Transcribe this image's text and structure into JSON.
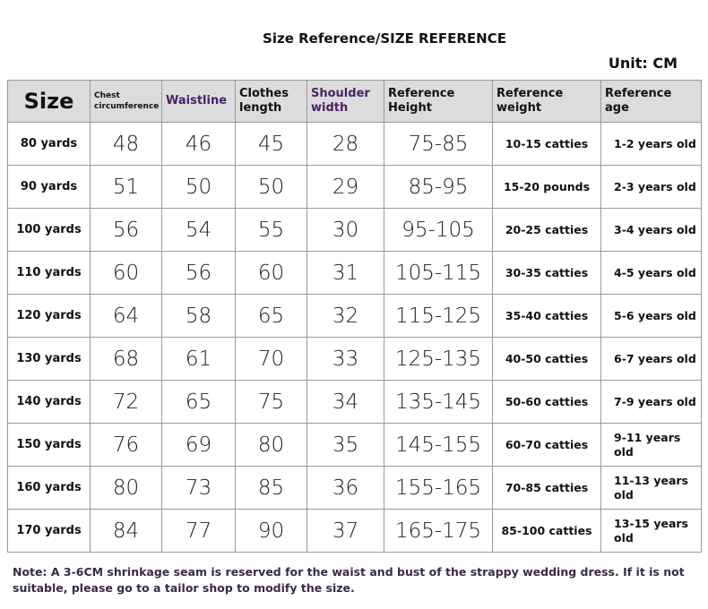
{
  "title": "Size Reference/SIZE REFERENCE",
  "unit": "Unit: CM",
  "table": {
    "headers": [
      "Size",
      "Chest circumference",
      "Waistline",
      "Clothes length",
      "Shoulder width",
      "Reference Height",
      "Reference weight",
      "Reference age"
    ],
    "rows": [
      [
        "80 yards",
        "48",
        "46",
        "45",
        "28",
        "75-85",
        "10-15 catties",
        "1-2 years old"
      ],
      [
        "90 yards",
        "51",
        "50",
        "50",
        "29",
        "85-95",
        "15-20 pounds",
        "2-3 years old"
      ],
      [
        "100 yards",
        "56",
        "54",
        "55",
        "30",
        "95-105",
        "20-25 catties",
        "3-4 years old"
      ],
      [
        "110 yards",
        "60",
        "56",
        "60",
        "31",
        "105-115",
        "30-35 catties",
        "4-5 years old"
      ],
      [
        "120 yards",
        "64",
        "58",
        "65",
        "32",
        "115-125",
        "35-40 catties",
        "5-6 years old"
      ],
      [
        "130 yards",
        "68",
        "61",
        "70",
        "33",
        "125-135",
        "40-50 catties",
        "6-7 years old"
      ],
      [
        "140 yards",
        "72",
        "65",
        "75",
        "34",
        "135-145",
        "50-60 catties",
        "7-9 years old"
      ],
      [
        "150 yards",
        "76",
        "69",
        "80",
        "35",
        "145-155",
        "60-70 catties",
        "9-11 years old"
      ],
      [
        "160 yards",
        "80",
        "73",
        "85",
        "36",
        "155-165",
        "70-85 catties",
        "11-13 years old"
      ],
      [
        "170 yards",
        "84",
        "77",
        "90",
        "37",
        "165-175",
        "85-100 catties",
        "13-15 years old"
      ]
    ]
  },
  "note": "Note: A 3-6CM shrinkage seam is reserved for the waist and bust of the strappy wedding dress. If it is not suitable, please go to a tailor shop to modify the size."
}
